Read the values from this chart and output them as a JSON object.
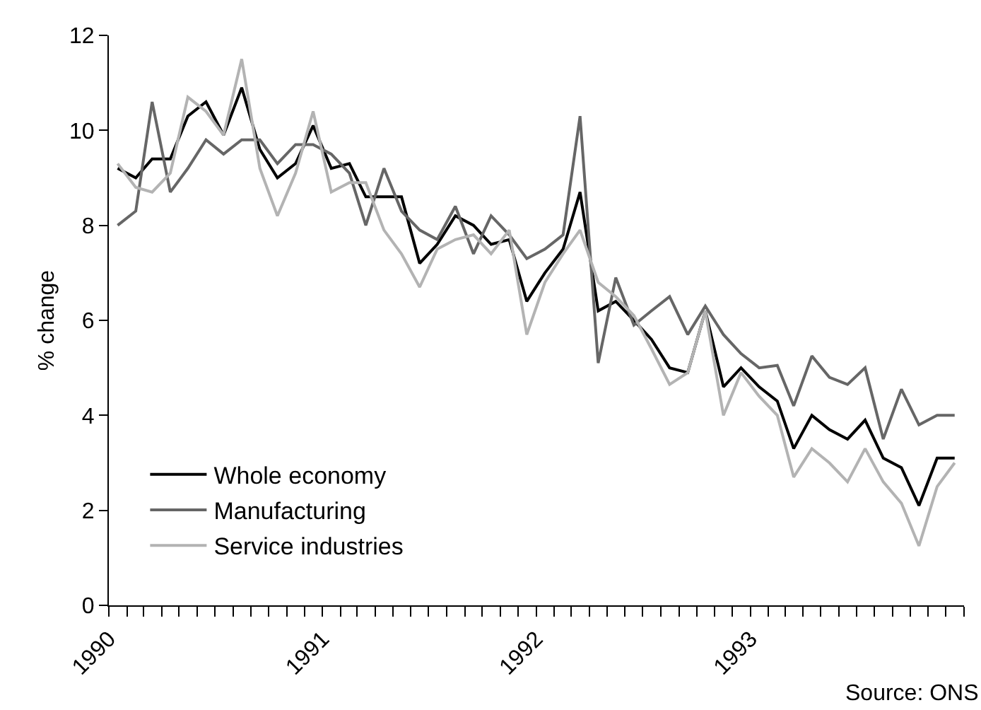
{
  "chart_data": {
    "type": "line",
    "ylabel": "% change",
    "x": [
      "1990-01-16",
      "1990-02-16",
      "1990-03-16",
      "1990-04-16",
      "1990-05-16",
      "1990-06-16",
      "1990-07-16",
      "1990-08-16",
      "1990-09-16",
      "1990-10-16",
      "1990-11-16",
      "1990-12-16",
      "1991-01-16",
      "1991-02-16",
      "1991-03-16",
      "1991-04-16",
      "1991-05-16",
      "1991-06-16",
      "1991-07-16",
      "1991-08-16",
      "1991-09-16",
      "1991-10-16",
      "1991-11-16",
      "1991-12-16",
      "1992-01-16",
      "1992-02-16",
      "1992-03-16",
      "1992-04-16",
      "1992-05-16",
      "1992-06-16",
      "1992-07-16",
      "1992-08-16",
      "1992-09-16",
      "1992-10-16",
      "1992-11-16",
      "1992-12-16",
      "1993-01-16",
      "1993-02-16",
      "1993-03-16",
      "1993-04-16",
      "1993-05-16",
      "1993-06-16",
      "1993-07-16",
      "1993-08-16",
      "1993-09-16",
      "1993-10-16",
      "1993-11-16",
      "1993-12-16"
    ],
    "series": [
      {
        "name": "Whole economy",
        "color": "#000000",
        "values": [
          9.2,
          9.0,
          9.4,
          9.4,
          10.3,
          10.6,
          9.9,
          10.9,
          9.6,
          9.0,
          9.3,
          10.1,
          9.2,
          9.3,
          8.6,
          8.6,
          8.6,
          7.2,
          7.6,
          8.2,
          8.0,
          7.6,
          7.7,
          6.4,
          7.0,
          7.5,
          8.7,
          6.2,
          6.4,
          6.0,
          5.6,
          5.0,
          4.9,
          6.2,
          4.6,
          5.0,
          4.6,
          4.3,
          3.3,
          4.0,
          3.7,
          3.5,
          3.9,
          3.1,
          2.9,
          2.1,
          3.1,
          3.1
        ]
      },
      {
        "name": "Manufacturing",
        "color": "#666666",
        "values": [
          8.0,
          8.3,
          10.6,
          8.7,
          9.2,
          9.8,
          9.5,
          9.8,
          9.8,
          9.3,
          9.7,
          9.7,
          9.5,
          9.1,
          8.0,
          9.2,
          8.3,
          7.9,
          7.7,
          8.4,
          7.4,
          8.2,
          7.8,
          7.3,
          7.5,
          7.8,
          10.3,
          5.1,
          6.9,
          5.9,
          6.2,
          6.5,
          5.7,
          6.3,
          5.7,
          5.3,
          5.0,
          5.05,
          4.2,
          5.25,
          4.8,
          4.65,
          5.0,
          3.5,
          4.55,
          3.8,
          4.0,
          4.0
        ]
      },
      {
        "name": "Service industries",
        "color": "#b3b3b3",
        "values": [
          9.3,
          8.8,
          8.7,
          9.1,
          10.7,
          10.4,
          9.9,
          11.5,
          9.2,
          8.2,
          9.1,
          10.4,
          8.7,
          8.9,
          8.9,
          7.9,
          7.4,
          6.7,
          7.5,
          7.7,
          7.8,
          7.4,
          7.9,
          5.7,
          6.8,
          7.4,
          7.9,
          6.8,
          6.5,
          6.1,
          5.4,
          4.65,
          4.9,
          6.2,
          4.0,
          4.9,
          4.4,
          4.0,
          2.7,
          3.3,
          3.0,
          2.6,
          3.3,
          2.6,
          2.15,
          1.25,
          2.5,
          3.0
        ]
      }
    ],
    "xlim": [
      "1990-01-01",
      "1994-01-01"
    ],
    "xticks": [
      {
        "value": "1990-01-01",
        "label": "1990"
      },
      {
        "value": "1991-01-01",
        "label": "1991"
      },
      {
        "value": "1992-01-01",
        "label": "1992"
      },
      {
        "value": "1993-01-01",
        "label": "1993"
      }
    ],
    "ylim": [
      0,
      12
    ],
    "yticks": [
      0,
      2,
      4,
      6,
      8,
      10,
      12
    ],
    "legend": "bottom left",
    "line_style": "solid",
    "annotations": [
      "Source: ONS"
    ]
  }
}
